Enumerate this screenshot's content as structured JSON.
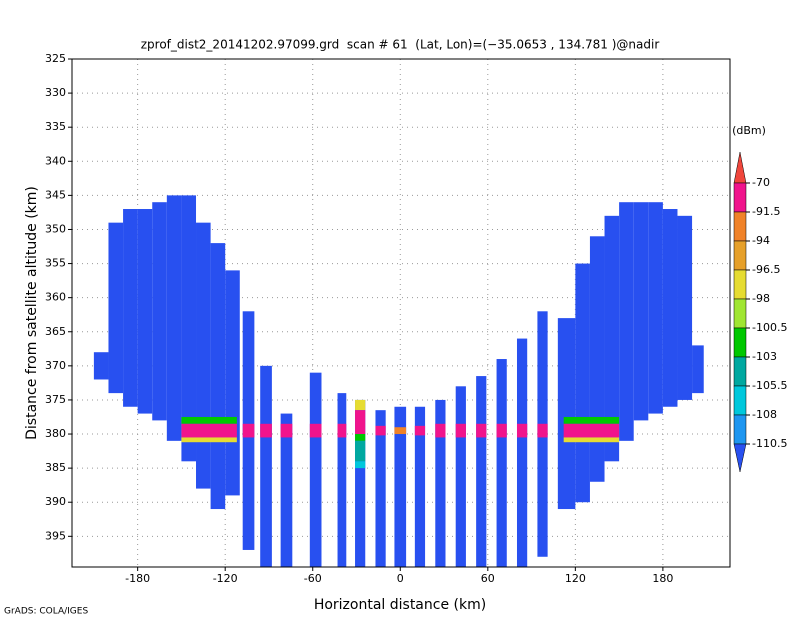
{
  "chart_data": {
    "type": "profile",
    "title": "zprof_dist2_20141202.97099.grd  scan # 61  (Lat, Lon)=(−35.0653 , 134.781 )@nadir",
    "x_label": "Horizontal distance (km)",
    "y_label": "Distance from satellite altitude (km)",
    "credit": "GrADS: COLA/IGES",
    "xlim": [
      -225,
      226
    ],
    "ylim": [
      325,
      399.5
    ],
    "y_inverted": true,
    "xticks": [
      -180,
      -120,
      -60,
      0,
      60,
      120,
      180
    ],
    "yticks": [
      325,
      330,
      335,
      340,
      345,
      350,
      355,
      360,
      365,
      370,
      375,
      380,
      385,
      390,
      395
    ],
    "grid": true,
    "colorbar": {
      "label": "(dBm)",
      "levels": [
        -70,
        -91.5,
        -94,
        -96.5,
        -98,
        -100.5,
        -103,
        -105.5,
        -108,
        -110.5
      ],
      "colors": [
        "#f0463c",
        "#f0148c",
        "#f08228",
        "#e6a02a",
        "#e6dc32",
        "#a0e632",
        "#00c800",
        "#00a8a0",
        "#00c8dc",
        "#1e96f0",
        "#2850f0"
      ]
    },
    "columns": [
      {
        "x": [
          -210,
          -200
        ],
        "top": 368,
        "bottom": 372,
        "dbm": -112
      },
      {
        "x": [
          -200,
          -190
        ],
        "top": 349,
        "bottom": 374,
        "dbm": -112
      },
      {
        "x": [
          -190,
          -180
        ],
        "top": 347,
        "bottom": 376,
        "dbm": -112
      },
      {
        "x": [
          -180,
          -170
        ],
        "top": 347,
        "bottom": 377,
        "dbm": -112
      },
      {
        "x": [
          -170,
          -160
        ],
        "top": 346,
        "bottom": 378,
        "dbm": -112
      },
      {
        "x": [
          -160,
          -150
        ],
        "top": 345,
        "bottom": 381,
        "dbm": -112
      },
      {
        "x": [
          -150,
          -140
        ],
        "top": 345,
        "bottom": 384,
        "dbm": -112
      },
      {
        "x": [
          -140,
          -130
        ],
        "top": 349,
        "bottom": 388,
        "dbm": -112
      },
      {
        "x": [
          -130,
          -120
        ],
        "top": 352,
        "bottom": 391,
        "dbm": -112
      },
      {
        "x": [
          -120,
          -110
        ],
        "top": 356,
        "bottom": 389,
        "dbm": -112
      },
      {
        "x": [
          -108,
          -100
        ],
        "top": 362,
        "bottom": 397,
        "dbm": -112
      },
      {
        "x": [
          -96,
          -88
        ],
        "top": 370,
        "bottom": 399.5,
        "dbm": -112
      },
      {
        "x": [
          -82,
          -74
        ],
        "top": 377,
        "bottom": 399.5,
        "dbm": -112
      },
      {
        "x": [
          -62,
          -54
        ],
        "top": 371,
        "bottom": 399.5,
        "dbm": -112
      },
      {
        "x": [
          -43,
          -37
        ],
        "top": 374,
        "bottom": 399.5,
        "dbm": -112
      },
      {
        "x": [
          -31,
          -24
        ],
        "top": 375,
        "bottom": 399.5,
        "dbm": -112
      },
      {
        "x": [
          -17,
          -10
        ],
        "top": 376.5,
        "bottom": 399.5,
        "dbm": -112
      },
      {
        "x": [
          -4,
          4
        ],
        "top": 376,
        "bottom": 399.5,
        "dbm": -112
      },
      {
        "x": [
          10,
          17
        ],
        "top": 376,
        "bottom": 399.5,
        "dbm": -112
      },
      {
        "x": [
          24,
          31
        ],
        "top": 375,
        "bottom": 399.5,
        "dbm": -112
      },
      {
        "x": [
          38,
          45
        ],
        "top": 373,
        "bottom": 399.5,
        "dbm": -112
      },
      {
        "x": [
          52,
          59
        ],
        "top": 371.5,
        "bottom": 399.5,
        "dbm": -112
      },
      {
        "x": [
          66,
          73
        ],
        "top": 369,
        "bottom": 399.5,
        "dbm": -112
      },
      {
        "x": [
          80,
          87
        ],
        "top": 366,
        "bottom": 399.5,
        "dbm": -112
      },
      {
        "x": [
          94,
          101
        ],
        "top": 362,
        "bottom": 398,
        "dbm": -112
      },
      {
        "x": [
          108,
          120
        ],
        "top": 363,
        "bottom": 391,
        "dbm": -112
      },
      {
        "x": [
          120,
          130
        ],
        "top": 355,
        "bottom": 390,
        "dbm": -112
      },
      {
        "x": [
          130,
          140
        ],
        "top": 351,
        "bottom": 387,
        "dbm": -112
      },
      {
        "x": [
          140,
          150
        ],
        "top": 348,
        "bottom": 384,
        "dbm": -112
      },
      {
        "x": [
          150,
          160
        ],
        "top": 346,
        "bottom": 381,
        "dbm": -112
      },
      {
        "x": [
          160,
          170
        ],
        "top": 346,
        "bottom": 378,
        "dbm": -112
      },
      {
        "x": [
          170,
          180
        ],
        "top": 346,
        "bottom": 377,
        "dbm": -112
      },
      {
        "x": [
          180,
          190
        ],
        "top": 347,
        "bottom": 376,
        "dbm": -112
      },
      {
        "x": [
          190,
          200
        ],
        "top": 348,
        "bottom": 375,
        "dbm": -112
      },
      {
        "x": [
          200,
          208
        ],
        "top": 367,
        "bottom": 374,
        "dbm": -112
      }
    ],
    "bands": [
      {
        "x": [
          -150,
          -112
        ],
        "top": 377.5,
        "bottom": 378.5,
        "dbm": -101
      },
      {
        "x": [
          -150,
          -112
        ],
        "top": 378.5,
        "bottom": 380.5,
        "dbm": -80
      },
      {
        "x": [
          -150,
          -112
        ],
        "top": 380.5,
        "bottom": 381.2,
        "dbm": -97
      },
      {
        "x": [
          -108,
          -100
        ],
        "top": 378.5,
        "bottom": 380.5,
        "dbm": -85
      },
      {
        "x": [
          -96,
          -88
        ],
        "top": 378.5,
        "bottom": 380.5,
        "dbm": -85
      },
      {
        "x": [
          -82,
          -74
        ],
        "top": 378.5,
        "bottom": 380.5,
        "dbm": -85
      },
      {
        "x": [
          -62,
          -54
        ],
        "top": 378.5,
        "bottom": 380.5,
        "dbm": -85
      },
      {
        "x": [
          -43,
          -37
        ],
        "top": 378.5,
        "bottom": 380.5,
        "dbm": -85
      },
      {
        "x": [
          -31,
          -24
        ],
        "top": 375,
        "bottom": 376.5,
        "dbm": -97
      },
      {
        "x": [
          -31,
          -24
        ],
        "top": 376.5,
        "bottom": 380,
        "dbm": -80
      },
      {
        "x": [
          -31,
          -24
        ],
        "top": 380,
        "bottom": 381,
        "dbm": -102
      },
      {
        "x": [
          -31,
          -24
        ],
        "top": 381,
        "bottom": 384,
        "dbm": -105
      },
      {
        "x": [
          -31,
          -24
        ],
        "top": 384,
        "bottom": 385,
        "dbm": -107
      },
      {
        "x": [
          -17,
          -10
        ],
        "top": 378.8,
        "bottom": 380.2,
        "dbm": -88
      },
      {
        "x": [
          -4,
          4
        ],
        "top": 379,
        "bottom": 380,
        "dbm": -92
      },
      {
        "x": [
          10,
          17
        ],
        "top": 378.8,
        "bottom": 380.2,
        "dbm": -88
      },
      {
        "x": [
          24,
          31
        ],
        "top": 378.5,
        "bottom": 380.5,
        "dbm": -85
      },
      {
        "x": [
          38,
          45
        ],
        "top": 378.5,
        "bottom": 380.5,
        "dbm": -85
      },
      {
        "x": [
          52,
          59
        ],
        "top": 378.5,
        "bottom": 380.5,
        "dbm": -85
      },
      {
        "x": [
          66,
          73
        ],
        "top": 378.5,
        "bottom": 380.5,
        "dbm": -85
      },
      {
        "x": [
          80,
          87
        ],
        "top": 378.5,
        "bottom": 380.5,
        "dbm": -85
      },
      {
        "x": [
          94,
          101
        ],
        "top": 378.5,
        "bottom": 380.5,
        "dbm": -85
      },
      {
        "x": [
          112,
          150
        ],
        "top": 377.5,
        "bottom": 378.5,
        "dbm": -101
      },
      {
        "x": [
          112,
          150
        ],
        "top": 378.5,
        "bottom": 380.5,
        "dbm": -80
      },
      {
        "x": [
          112,
          150
        ],
        "top": 380.5,
        "bottom": 381.2,
        "dbm": -97
      }
    ]
  }
}
